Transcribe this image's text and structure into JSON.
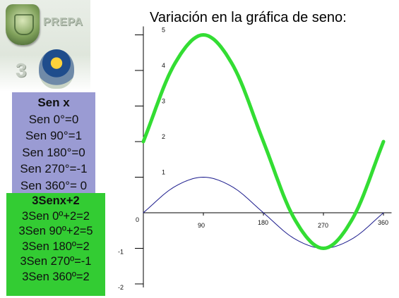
{
  "header": {
    "prepa_label": "PREPA",
    "number_label": "3"
  },
  "sen_box": {
    "heading": "Sen x",
    "lines": [
      "Sen 0°=0",
      "Sen 90°=1",
      "Sen 180°=0",
      "Sen 270°=-1",
      "Sen 360°= 0"
    ]
  },
  "tres_sen_box": {
    "heading": "3Senx+2",
    "lines": [
      "3Sen 0º+2=2",
      "3Sen 90º+2=5",
      "3Sen 180º=2",
      "3Sen 270º=-1",
      "3Sen 360º=2"
    ]
  },
  "chart_data": {
    "type": "line",
    "title": "Variación en la gráfica de seno:",
    "x_ticks": [
      "90",
      "180",
      "270",
      "360"
    ],
    "y_ticks": [
      "5",
      "4",
      "3",
      "2",
      "1",
      "-1",
      "-2"
    ],
    "origin_label": "0",
    "xlim": [
      0,
      370
    ],
    "ylim": [
      -2,
      5
    ],
    "series": [
      {
        "color": "#1a1a8c",
        "x": [
          0,
          45,
          90,
          135,
          180,
          225,
          270,
          315,
          360
        ],
        "y": [
          0,
          0.71,
          1,
          0.71,
          0,
          -0.71,
          -1,
          -0.71,
          0
        ]
      },
      {
        "color": "#33dd33",
        "x": [
          0,
          45,
          90,
          135,
          180,
          225,
          270,
          315,
          360
        ],
        "y": [
          2,
          4.12,
          5,
          4.12,
          2,
          -0.12,
          -1,
          -0.12,
          2
        ]
      }
    ]
  }
}
